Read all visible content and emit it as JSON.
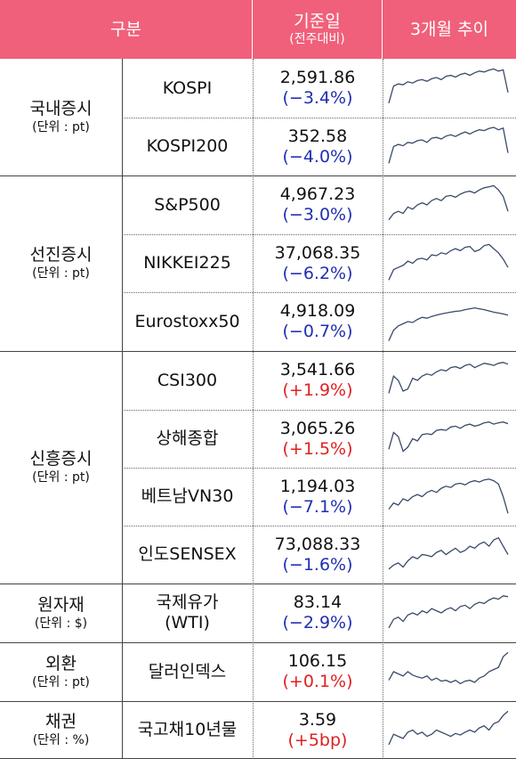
{
  "headers": {
    "category": "구분",
    "base_date": "기준일",
    "base_date_sub": "(전주대비)",
    "trend": "3개월 추이"
  },
  "colors": {
    "header_bg": "#f0607a",
    "negative": "#1f2fb0",
    "positive": "#e02020",
    "spark": "#3a4a6a"
  },
  "groups": [
    {
      "name": "국내증시",
      "unit": "(단위 : pt)",
      "rows": [
        {
          "index": "KOSPI",
          "value": "2,591.86",
          "change": "(−3.4%)",
          "dir": "neg"
        },
        {
          "index": "KOSPI200",
          "value": "352.58",
          "change": "(−4.0%)",
          "dir": "neg"
        }
      ]
    },
    {
      "name": "선진증시",
      "unit": "(단위 : pt)",
      "rows": [
        {
          "index": "S&P500",
          "value": "4,967.23",
          "change": "(−3.0%)",
          "dir": "neg"
        },
        {
          "index": "NIKKEI225",
          "value": "37,068.35",
          "change": "(−6.2%)",
          "dir": "neg"
        },
        {
          "index": "Eurostoxx50",
          "value": "4,918.09",
          "change": "(−0.7%)",
          "dir": "neg"
        }
      ]
    },
    {
      "name": "신흥증시",
      "unit": "(단위 : pt)",
      "rows": [
        {
          "index": "CSI300",
          "value": "3,541.66",
          "change": "(+1.9%)",
          "dir": "pos"
        },
        {
          "index": "상해종합",
          "value": "3,065.26",
          "change": "(+1.5%)",
          "dir": "pos"
        },
        {
          "index": "베트남VN30",
          "value": "1,194.03",
          "change": "(−7.1%)",
          "dir": "neg"
        },
        {
          "index": "인도SENSEX",
          "value": "73,088.33",
          "change": "(−1.6%)",
          "dir": "neg"
        }
      ]
    },
    {
      "name": "원자재",
      "unit": "(단위 : $)",
      "rows": [
        {
          "index": "국제유가\n(WTI)",
          "value": "83.14",
          "change": "(−2.9%)",
          "dir": "neg"
        }
      ]
    },
    {
      "name": "외환",
      "unit": "(단위 : pt)",
      "rows": [
        {
          "index": "달러인덱스",
          "value": "106.15",
          "change": "(+0.1%)",
          "dir": "pos"
        }
      ]
    },
    {
      "name": "채권",
      "unit": "(단위 : %)",
      "rows": [
        {
          "index": "국고채10년물",
          "value": "3.59",
          "change": "(+5bp)",
          "dir": "pos"
        }
      ]
    }
  ],
  "sparklines": [
    [
      0.15,
      0.55,
      0.6,
      0.58,
      0.65,
      0.62,
      0.68,
      0.7,
      0.66,
      0.72,
      0.75,
      0.7,
      0.78,
      0.8,
      0.76,
      0.82,
      0.85,
      0.8,
      0.86,
      0.9,
      0.88,
      0.92,
      0.95,
      0.9,
      0.93,
      0.4
    ],
    [
      0.1,
      0.5,
      0.55,
      0.52,
      0.6,
      0.58,
      0.64,
      0.66,
      0.6,
      0.7,
      0.72,
      0.68,
      0.75,
      0.78,
      0.74,
      0.8,
      0.85,
      0.8,
      0.86,
      0.9,
      0.88,
      0.93,
      0.96,
      0.9,
      0.94,
      0.35
    ],
    [
      0.15,
      0.3,
      0.35,
      0.3,
      0.45,
      0.4,
      0.5,
      0.55,
      0.5,
      0.6,
      0.65,
      0.6,
      0.7,
      0.72,
      0.68,
      0.75,
      0.8,
      0.82,
      0.78,
      0.85,
      0.9,
      0.92,
      0.95,
      0.85,
      0.7,
      0.35
    ],
    [
      0.1,
      0.35,
      0.4,
      0.45,
      0.55,
      0.5,
      0.6,
      0.62,
      0.58,
      0.7,
      0.68,
      0.75,
      0.72,
      0.8,
      0.85,
      0.8,
      0.88,
      0.9,
      0.78,
      0.82,
      0.92,
      0.95,
      0.85,
      0.75,
      0.6,
      0.4
    ],
    [
      0.05,
      0.3,
      0.4,
      0.45,
      0.5,
      0.48,
      0.55,
      0.6,
      0.58,
      0.62,
      0.65,
      0.68,
      0.7,
      0.72,
      0.74,
      0.75,
      0.78,
      0.8,
      0.82,
      0.8,
      0.78,
      0.75,
      0.72,
      0.7,
      0.68,
      0.65
    ],
    [
      0.2,
      0.6,
      0.5,
      0.25,
      0.3,
      0.55,
      0.5,
      0.6,
      0.65,
      0.62,
      0.7,
      0.75,
      0.72,
      0.8,
      0.82,
      0.78,
      0.85,
      0.88,
      0.8,
      0.85,
      0.9,
      0.88,
      0.85,
      0.9,
      0.92,
      0.88
    ],
    [
      0.25,
      0.65,
      0.55,
      0.2,
      0.3,
      0.5,
      0.45,
      0.6,
      0.62,
      0.6,
      0.7,
      0.72,
      0.7,
      0.78,
      0.8,
      0.75,
      0.82,
      0.85,
      0.8,
      0.83,
      0.88,
      0.9,
      0.85,
      0.88,
      0.9,
      0.86
    ],
    [
      0.2,
      0.35,
      0.3,
      0.45,
      0.4,
      0.5,
      0.55,
      0.5,
      0.6,
      0.65,
      0.6,
      0.7,
      0.75,
      0.72,
      0.8,
      0.82,
      0.78,
      0.85,
      0.88,
      0.85,
      0.9,
      0.92,
      0.88,
      0.8,
      0.5,
      0.1
    ],
    [
      0.15,
      0.25,
      0.3,
      0.2,
      0.35,
      0.45,
      0.4,
      0.5,
      0.48,
      0.45,
      0.55,
      0.6,
      0.5,
      0.58,
      0.65,
      0.55,
      0.6,
      0.7,
      0.65,
      0.75,
      0.8,
      0.7,
      0.85,
      0.9,
      0.7,
      0.5
    ],
    [
      0.15,
      0.35,
      0.4,
      0.3,
      0.45,
      0.5,
      0.45,
      0.55,
      0.5,
      0.6,
      0.55,
      0.5,
      0.58,
      0.62,
      0.55,
      0.65,
      0.68,
      0.6,
      0.7,
      0.75,
      0.72,
      0.8,
      0.85,
      0.82,
      0.9,
      0.88
    ],
    [
      0.3,
      0.5,
      0.45,
      0.4,
      0.5,
      0.42,
      0.38,
      0.35,
      0.4,
      0.3,
      0.35,
      0.28,
      0.3,
      0.25,
      0.3,
      0.22,
      0.28,
      0.3,
      0.25,
      0.35,
      0.4,
      0.5,
      0.55,
      0.6,
      0.85,
      0.95
    ],
    [
      0.15,
      0.4,
      0.35,
      0.3,
      0.45,
      0.5,
      0.4,
      0.45,
      0.35,
      0.4,
      0.5,
      0.45,
      0.4,
      0.35,
      0.42,
      0.38,
      0.45,
      0.5,
      0.45,
      0.55,
      0.6,
      0.5,
      0.65,
      0.7,
      0.85,
      0.95
    ]
  ]
}
